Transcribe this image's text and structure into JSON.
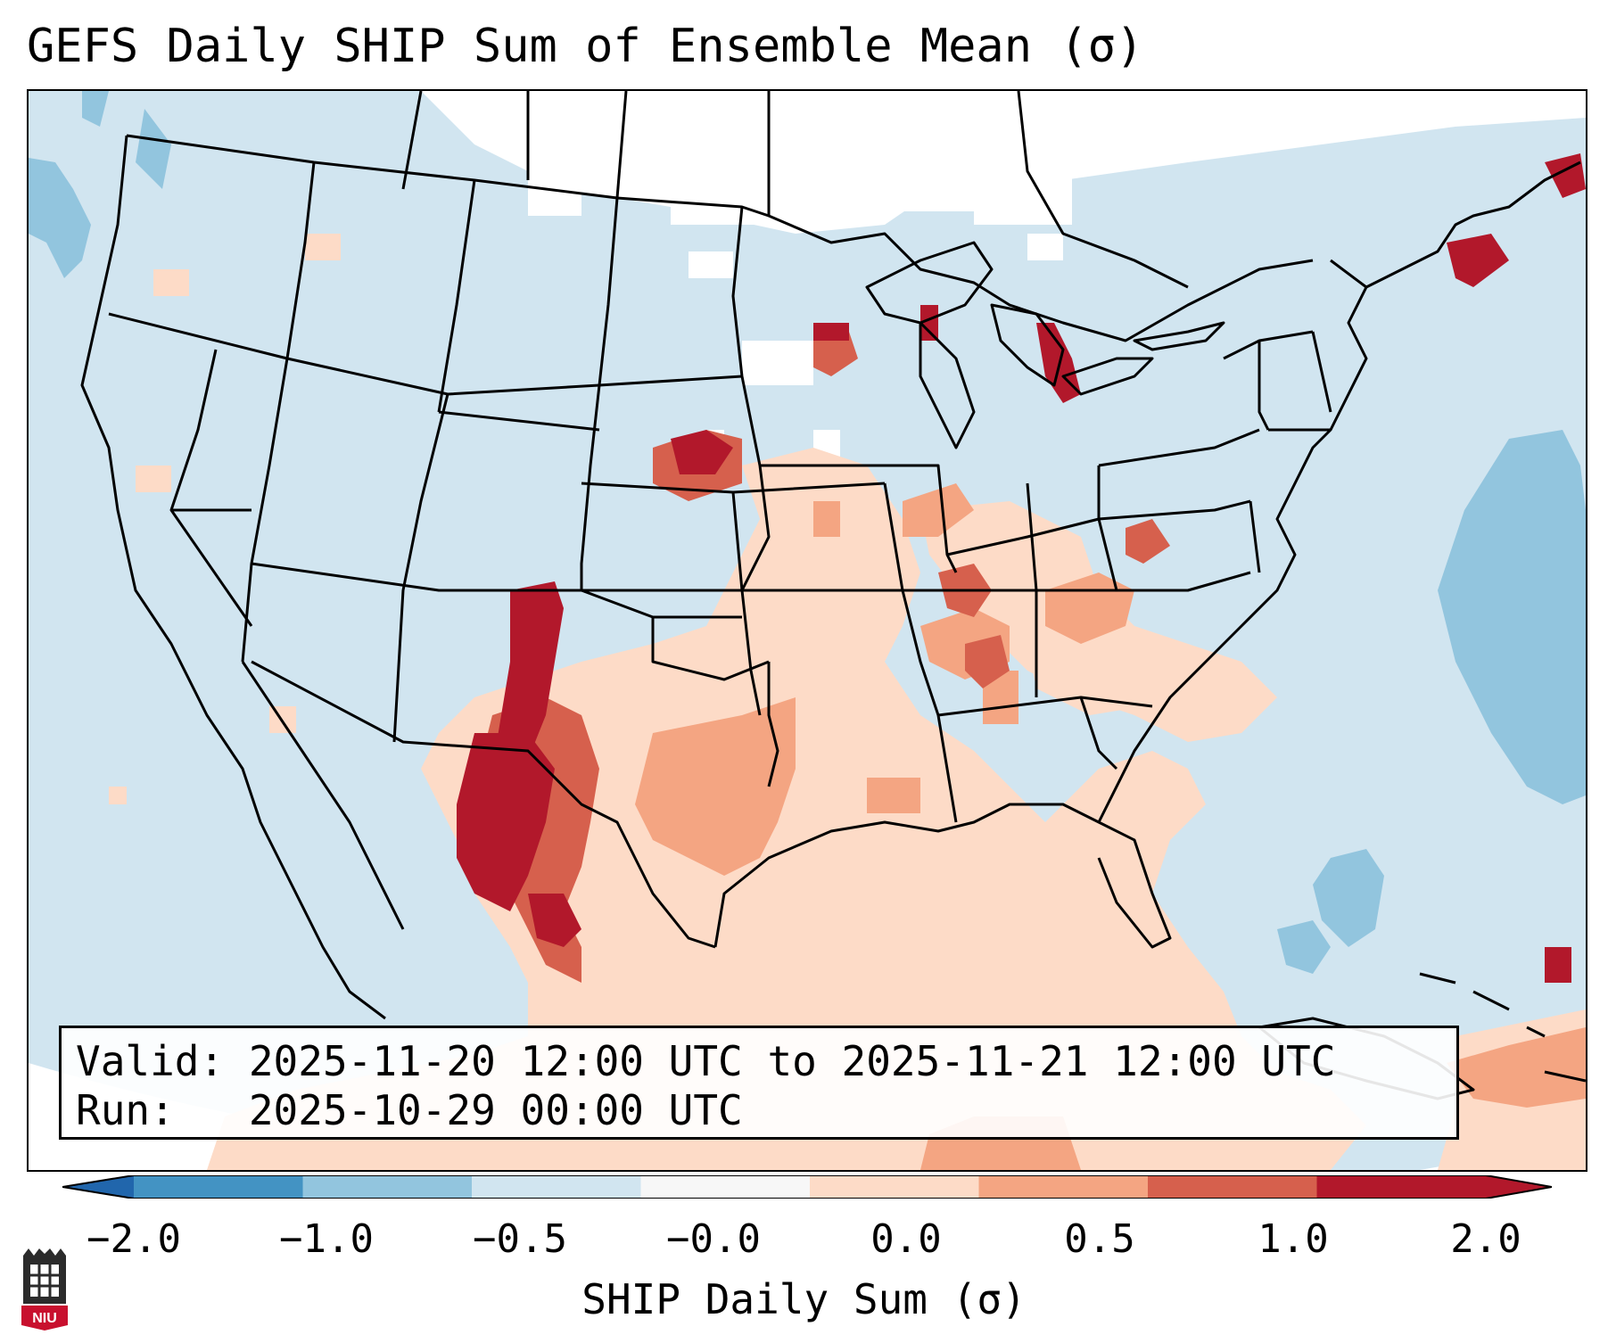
{
  "title": "GEFS Daily SHIP Sum of Ensemble Mean (σ)",
  "info": {
    "valid_line": "Valid: 2025-11-20 12:00 UTC to 2025-11-21 12:00 UTC",
    "run_line": "Run:   2025-10-29 00:00 UTC"
  },
  "colorbar": {
    "label": "SHIP Daily Sum (σ)",
    "ticks": [
      "−2.0",
      "−1.0",
      "−0.5",
      "−0.0",
      "0.0",
      "0.5",
      "1.0",
      "2.0"
    ],
    "colors": [
      "#4393c3",
      "#92c5de",
      "#d1e5f0",
      "#f7f7f7",
      "#fddbc7",
      "#f4a582",
      "#d6604d",
      "#b2182b"
    ],
    "extend": "both"
  },
  "map_colors": {
    "background": "#d1e5f0",
    "zero_band": "#ffffff",
    "light_negative": "#d1e5f0",
    "negative": "#92c5de",
    "light_positive": "#fddbc7",
    "positive": "#f4a582",
    "strong_positive": "#d6604d",
    "very_strong_positive": "#b2182b"
  },
  "logo": {
    "text": "NIU"
  }
}
